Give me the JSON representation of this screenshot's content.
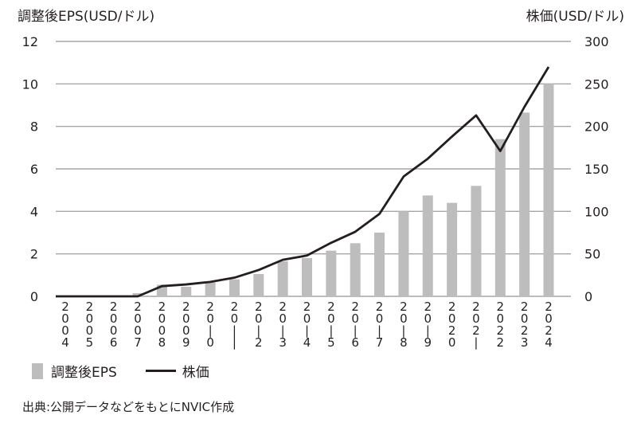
{
  "chart_data": {
    "type": "bar",
    "left_axis_title": "調整後EPS(USD/ドル)",
    "right_axis_title": "株価(USD/ドル)",
    "categories": [
      "2004",
      "2005",
      "2006",
      "2007",
      "2008",
      "2009",
      "2010",
      "2011",
      "2012",
      "2013",
      "2014",
      "2015",
      "2016",
      "2017",
      "2018",
      "2019",
      "2020",
      "2021",
      "2022",
      "2023",
      "2024"
    ],
    "x_tick_labels": [
      [
        "2",
        "0",
        "0",
        "4"
      ],
      [
        "2",
        "0",
        "0",
        "5"
      ],
      [
        "2",
        "0",
        "0",
        "6"
      ],
      [
        "2",
        "0",
        "0",
        "7"
      ],
      [
        "2",
        "0",
        "0",
        "8"
      ],
      [
        "2",
        "0",
        "0",
        "9"
      ],
      [
        "2",
        "0",
        "|",
        "0"
      ],
      [
        "2",
        "0",
        "|",
        "|"
      ],
      [
        "2",
        "0",
        "|",
        "2"
      ],
      [
        "2",
        "0",
        "|",
        "3"
      ],
      [
        "2",
        "0",
        "|",
        "4"
      ],
      [
        "2",
        "0",
        "|",
        "5"
      ],
      [
        "2",
        "0",
        "|",
        "6"
      ],
      [
        "2",
        "0",
        "|",
        "7"
      ],
      [
        "2",
        "0",
        "|",
        "8"
      ],
      [
        "2",
        "0",
        "|",
        "9"
      ],
      [
        "2",
        "0",
        "2",
        "0"
      ],
      [
        "2",
        "0",
        "2",
        "|"
      ],
      [
        "2",
        "0",
        "2",
        "2"
      ],
      [
        "2",
        "0",
        "2",
        "3"
      ],
      [
        "2",
        "0",
        "2",
        "4"
      ]
    ],
    "series": [
      {
        "name": "調整後EPS",
        "kind": "bar",
        "axis": "left",
        "color": "#bdbdbd",
        "values": [
          0,
          0,
          0,
          0.15,
          0.55,
          0.45,
          0.65,
          0.8,
          1.05,
          1.65,
          1.8,
          2.15,
          2.5,
          3.0,
          4.0,
          4.75,
          4.4,
          5.2,
          7.4,
          8.65,
          10.0
        ]
      },
      {
        "name": "株価",
        "kind": "line",
        "axis": "right",
        "color": "#231f20",
        "values": [
          0,
          0,
          0,
          0,
          12,
          14,
          17,
          22,
          31,
          43,
          48,
          63,
          76,
          97,
          141,
          162,
          188,
          213,
          171,
          223,
          270
        ]
      }
    ],
    "left_ylim": [
      0,
      12
    ],
    "left_yticks": [
      "0",
      "2",
      "4",
      "6",
      "8",
      "10",
      "12"
    ],
    "right_ylim": [
      0,
      300
    ],
    "right_yticks": [
      "0",
      "50",
      "100",
      "150",
      "200",
      "250",
      "300"
    ],
    "grid": true,
    "legend_position": "bottom-left"
  },
  "legend": {
    "bar_label": "調整後EPS",
    "line_label": "株価"
  },
  "source_note": "出典:公開データなどをもとにNVIC作成"
}
